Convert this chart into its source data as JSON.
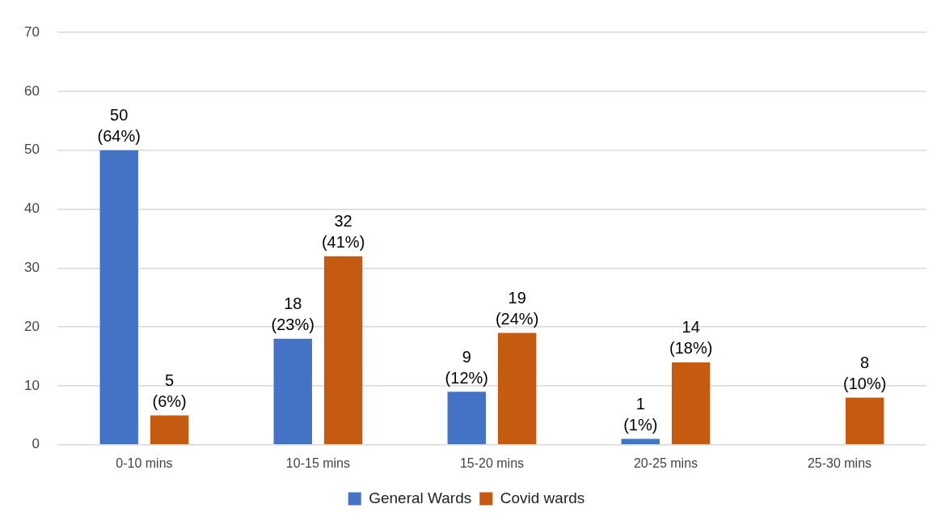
{
  "chart_data": {
    "type": "bar",
    "categories": [
      "0-10 mins",
      "10-15 mins",
      "15-20 mins",
      "20-25 mins",
      "25-30 mins"
    ],
    "series": [
      {
        "name": "General Wards",
        "color": "#4472c4",
        "values": [
          50,
          18,
          9,
          1,
          null
        ],
        "value_labels": [
          "50\n(64%)",
          "18\n(23%)",
          "9\n(12%)",
          "1\n(1%)",
          null
        ]
      },
      {
        "name": "Covid wards",
        "color": "#c55a11",
        "values": [
          5,
          32,
          19,
          14,
          8
        ],
        "value_labels": [
          "5\n(6%)",
          "32\n(41%)",
          "19\n(24%)",
          "14\n(18%)",
          "8\n(10%)"
        ]
      }
    ],
    "ylim": [
      0,
      70
    ],
    "yticks": [
      0,
      10,
      20,
      30,
      40,
      50,
      60,
      70
    ],
    "grid": "y",
    "legend": "bottom"
  }
}
